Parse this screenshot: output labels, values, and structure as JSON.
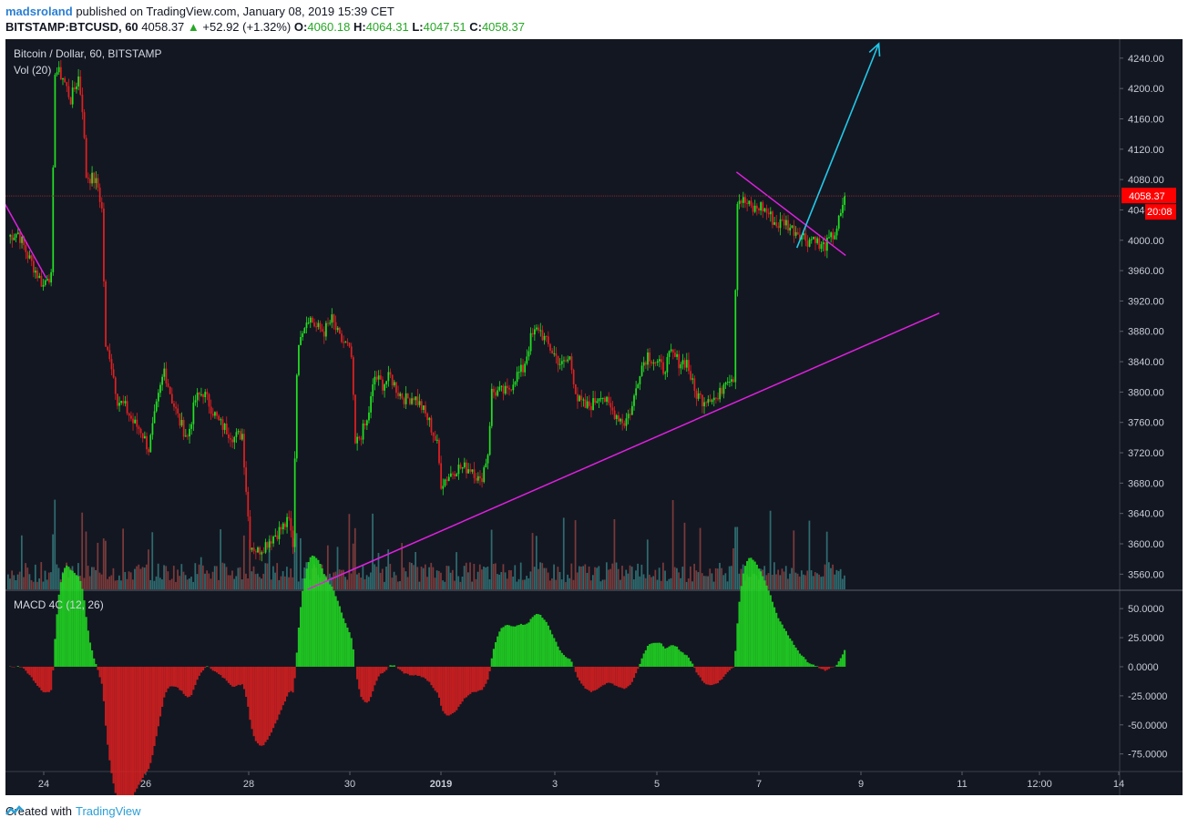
{
  "header": {
    "author": "madsroland",
    "published_text": "published on TradingView.com, January 08, 2019 15:39 CET",
    "symbol": "BITSTAMP:BTCUSD, 60",
    "last": "4058.37",
    "change_arrow": "▲",
    "change": "+52.92 (+1.32%)",
    "o_label": "O:",
    "o_value": "4060.18",
    "h_label": "H:",
    "h_value": "4064.31",
    "l_label": "L:",
    "l_value": "4047.51",
    "c_label": "C:",
    "c_value": "4058.37"
  },
  "chart_data": {
    "type": "candlestick",
    "title": "Bitcoin / Dollar, 60, BITSTAMP",
    "volume_label": "Vol (20)",
    "macd_label": "MACD 4C (12, 26)",
    "price_ticks": [
      "4240.00",
      "4200.00",
      "4160.00",
      "4120.00",
      "4080.00",
      "4040.00",
      "4000.00",
      "3960.00",
      "3920.00",
      "3880.00",
      "3840.00",
      "3800.00",
      "3760.00",
      "3720.00",
      "3680.00",
      "3640.00",
      "3600.00",
      "3560.00"
    ],
    "price_ylim": [
      3540,
      4265
    ],
    "macd_ticks": [
      "50.0000",
      "25.0000",
      "0.0000",
      "-25.0000",
      "-50.0000",
      "-75.0000"
    ],
    "macd_ylim": [
      -87,
      65
    ],
    "x_ticks": [
      "24",
      "26",
      "28",
      "30",
      "2019",
      "3",
      "5",
      "7",
      "9",
      "11",
      "12:00",
      "14"
    ],
    "last_price_label": "4058.37",
    "countdown_label": "20:08",
    "colors": {
      "background": "#131722",
      "up": "#22e022",
      "down": "#e02020",
      "volume_up": "#2f6b6f",
      "volume_down": "#7a3a3a",
      "trendline": "#e020e0",
      "arrow": "#22c8e8",
      "price_label": "#ff0000"
    },
    "price_path": [
      [
        0,
        4005
      ],
      [
        5,
        4010
      ],
      [
        10,
        3980
      ],
      [
        14,
        3960
      ],
      [
        18,
        3940
      ],
      [
        20,
        3955
      ],
      [
        22,
        3950
      ],
      [
        24,
        4225
      ],
      [
        28,
        4215
      ],
      [
        32,
        4185
      ],
      [
        34,
        4200
      ],
      [
        36,
        4215
      ],
      [
        38,
        4175
      ],
      [
        40,
        4085
      ],
      [
        44,
        4080
      ],
      [
        46,
        4070
      ],
      [
        48,
        4040
      ],
      [
        50,
        3855
      ],
      [
        52,
        3850
      ],
      [
        56,
        3790
      ],
      [
        60,
        3780
      ],
      [
        64,
        3760
      ],
      [
        68,
        3750
      ],
      [
        72,
        3725
      ],
      [
        76,
        3780
      ],
      [
        80,
        3830
      ],
      [
        84,
        3790
      ],
      [
        88,
        3760
      ],
      [
        92,
        3740
      ],
      [
        96,
        3790
      ],
      [
        100,
        3800
      ],
      [
        104,
        3780
      ],
      [
        108,
        3760
      ],
      [
        112,
        3750
      ],
      [
        116,
        3740
      ],
      [
        120,
        3745
      ],
      [
        124,
        3600
      ],
      [
        128,
        3590
      ],
      [
        132,
        3600
      ],
      [
        136,
        3610
      ],
      [
        140,
        3620
      ],
      [
        144,
        3630
      ],
      [
        146,
        3600
      ],
      [
        148,
        3830
      ],
      [
        150,
        3880
      ],
      [
        154,
        3900
      ],
      [
        158,
        3885
      ],
      [
        162,
        3880
      ],
      [
        166,
        3895
      ],
      [
        170,
        3870
      ],
      [
        174,
        3860
      ],
      [
        176,
        3845
      ],
      [
        178,
        3730
      ],
      [
        180,
        3740
      ],
      [
        184,
        3760
      ],
      [
        188,
        3820
      ],
      [
        192,
        3810
      ],
      [
        196,
        3820
      ],
      [
        200,
        3800
      ],
      [
        204,
        3790
      ],
      [
        208,
        3795
      ],
      [
        212,
        3780
      ],
      [
        216,
        3760
      ],
      [
        220,
        3730
      ],
      [
        222,
        3680
      ],
      [
        226,
        3690
      ],
      [
        230,
        3700
      ],
      [
        234,
        3700
      ],
      [
        238,
        3700
      ],
      [
        242,
        3680
      ],
      [
        246,
        3720
      ],
      [
        248,
        3800
      ],
      [
        252,
        3800
      ],
      [
        256,
        3800
      ],
      [
        260,
        3820
      ],
      [
        264,
        3830
      ],
      [
        268,
        3870
      ],
      [
        272,
        3885
      ],
      [
        276,
        3865
      ],
      [
        280,
        3850
      ],
      [
        284,
        3835
      ],
      [
        288,
        3845
      ],
      [
        292,
        3790
      ],
      [
        296,
        3780
      ],
      [
        300,
        3785
      ],
      [
        304,
        3800
      ],
      [
        308,
        3780
      ],
      [
        312,
        3770
      ],
      [
        316,
        3760
      ],
      [
        320,
        3780
      ],
      [
        324,
        3830
      ],
      [
        328,
        3850
      ],
      [
        332,
        3840
      ],
      [
        336,
        3830
      ],
      [
        340,
        3850
      ],
      [
        344,
        3840
      ],
      [
        348,
        3840
      ],
      [
        352,
        3800
      ],
      [
        356,
        3790
      ],
      [
        360,
        3795
      ],
      [
        364,
        3790
      ],
      [
        368,
        3820
      ],
      [
        372,
        3820
      ],
      [
        374,
        4055
      ],
      [
        378,
        4050
      ],
      [
        382,
        4040
      ],
      [
        386,
        4045
      ],
      [
        390,
        4035
      ],
      [
        394,
        4020
      ],
      [
        398,
        4025
      ],
      [
        402,
        4015
      ],
      [
        406,
        4010
      ],
      [
        410,
        4000
      ],
      [
        414,
        4005
      ],
      [
        416,
        3990
      ],
      [
        420,
        3995
      ],
      [
        424,
        4010
      ],
      [
        428,
        4040
      ],
      [
        429,
        4058
      ]
    ],
    "candle_count": 430,
    "trendlines": [
      {
        "from": [
          -6,
          4070
        ],
        "to": [
          20,
          3950
        ]
      },
      {
        "from": [
          154,
          3540
        ],
        "to": [
          478,
          3904
        ]
      },
      {
        "from": [
          374,
          4090
        ],
        "to": [
          430,
          3980
        ]
      }
    ],
    "arrow": {
      "from": [
        405,
        3990
      ],
      "to": [
        447,
        4265
      ]
    }
  }
}
